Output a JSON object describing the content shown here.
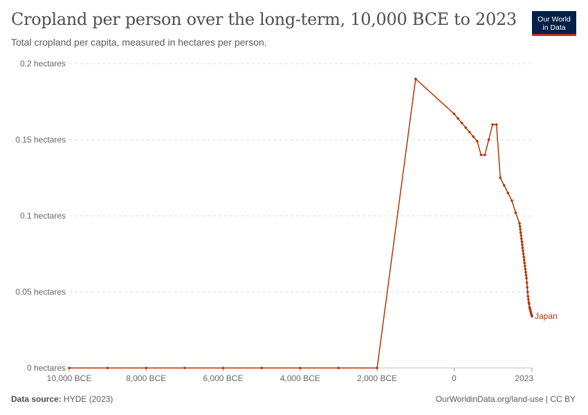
{
  "header": {
    "title": "Cropland per person over the long-term, 10,000 BCE to 2023",
    "subtitle": "Total cropland per capita, measured in hectares per person."
  },
  "logo": {
    "line1": "Our World",
    "line2": "in Data"
  },
  "footer": {
    "source_label": "Data source:",
    "source_value": "HYDE (2023)",
    "link": "OurWorldinData.org/land-use | CC BY"
  },
  "colors": {
    "series": "#b13507",
    "logo_bg": "#002147",
    "logo_accent": "#ce261e"
  },
  "chart_data": {
    "type": "line",
    "title": "Cropland per person over the long-term, 10,000 BCE to 2023",
    "subtitle": "Total cropland per capita, measured in hectares per person.",
    "xlabel": "",
    "ylabel": "",
    "xlim": [
      -10000,
      2023
    ],
    "ylim": [
      0,
      0.2
    ],
    "grid": "horizontal dashed",
    "y_ticks": [
      {
        "value": 0,
        "label": "0 hectares"
      },
      {
        "value": 0.05,
        "label": "0.05 hectares"
      },
      {
        "value": 0.1,
        "label": "0.1 hectares"
      },
      {
        "value": 0.15,
        "label": "0.15 hectares"
      },
      {
        "value": 0.2,
        "label": "0.2 hectares"
      }
    ],
    "x_ticks": [
      {
        "value": -10000,
        "label": "10,000 BCE"
      },
      {
        "value": -8000,
        "label": "8,000 BCE"
      },
      {
        "value": -6000,
        "label": "6,000 BCE"
      },
      {
        "value": -4000,
        "label": "4,000 BCE"
      },
      {
        "value": -2000,
        "label": "2,000 BCE"
      },
      {
        "value": 0,
        "label": "0"
      },
      {
        "value": 2023,
        "label": "2023"
      }
    ],
    "series": [
      {
        "name": "Japan",
        "x": [
          -10000,
          -9000,
          -8000,
          -7000,
          -6000,
          -5000,
          -4000,
          -3000,
          -2000,
          -1000,
          0,
          100,
          200,
          300,
          400,
          500,
          600,
          700,
          800,
          900,
          1000,
          1100,
          1200,
          1300,
          1400,
          1500,
          1600,
          1700,
          1710,
          1720,
          1730,
          1740,
          1750,
          1760,
          1770,
          1780,
          1790,
          1800,
          1810,
          1820,
          1830,
          1840,
          1850,
          1860,
          1870,
          1880,
          1890,
          1900,
          1910,
          1920,
          1930,
          1940,
          1950,
          1960,
          1970,
          1980,
          1990,
          2000,
          2010,
          2023
        ],
        "y": [
          0,
          0,
          0,
          0,
          0,
          0,
          0,
          0,
          0,
          0.19,
          0.167,
          0.164,
          0.161,
          0.158,
          0.155,
          0.152,
          0.149,
          0.14,
          0.14,
          0.15,
          0.16,
          0.16,
          0.125,
          0.12,
          0.115,
          0.11,
          0.102,
          0.095,
          0.093,
          0.091,
          0.089,
          0.087,
          0.085,
          0.083,
          0.081,
          0.079,
          0.077,
          0.075,
          0.073,
          0.071,
          0.069,
          0.067,
          0.065,
          0.063,
          0.061,
          0.059,
          0.056,
          0.053,
          0.05,
          0.047,
          0.045,
          0.043,
          0.042,
          0.04,
          0.039,
          0.038,
          0.037,
          0.036,
          0.035,
          0.034
        ]
      }
    ]
  }
}
